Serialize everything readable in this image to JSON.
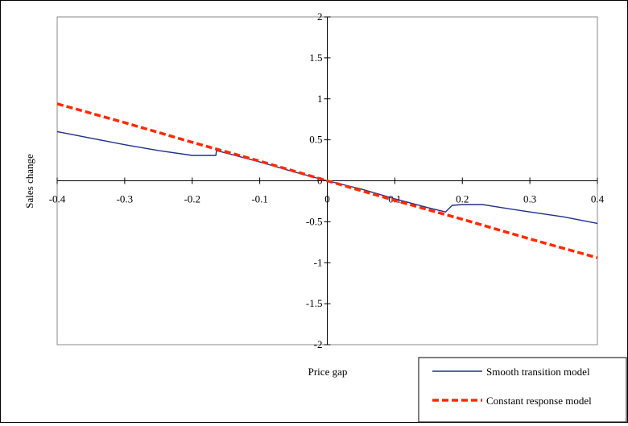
{
  "chart_data": {
    "type": "line",
    "title": "",
    "xlabel": "Price gap",
    "ylabel": "Sales change",
    "xlim": [
      -0.4,
      0.4
    ],
    "ylim": [
      -2,
      2
    ],
    "x_ticks": [
      "-0.4",
      "-0.3",
      "-0.2",
      "-0.1",
      "0",
      "0.1",
      "0.2",
      "0.3",
      "0.4"
    ],
    "y_ticks": [
      "2",
      "1.5",
      "1",
      "0.5",
      "0",
      "-0.5",
      "-1",
      "-1.5",
      "-2"
    ],
    "x_tick_values": [
      -0.4,
      -0.3,
      -0.2,
      -0.1,
      0,
      0.1,
      0.2,
      0.3,
      0.4
    ],
    "y_tick_values": [
      2,
      1.5,
      1,
      0.5,
      0,
      -0.5,
      -1,
      -1.5,
      -2
    ],
    "grid": false,
    "legend_position": "bottom-right",
    "series": [
      {
        "name": "Smooth transition model",
        "color": "#1f2f8f",
        "style": "solid",
        "x": [
          -0.4,
          -0.35,
          -0.3,
          -0.25,
          -0.2,
          -0.165,
          -0.164,
          -0.1,
          -0.05,
          0,
          0.05,
          0.1,
          0.15,
          0.175,
          0.185,
          0.2,
          0.23,
          0.26,
          0.3,
          0.35,
          0.4
        ],
        "y": [
          0.6,
          0.52,
          0.44,
          0.37,
          0.31,
          0.31,
          0.37,
          0.23,
          0.11,
          0,
          -0.1,
          -0.22,
          -0.33,
          -0.38,
          -0.3,
          -0.29,
          -0.29,
          -0.33,
          -0.38,
          -0.44,
          -0.52
        ]
      },
      {
        "name": "Constant response model",
        "color": "#ff2a00",
        "style": "dashed",
        "x": [
          -0.4,
          -0.3,
          -0.2,
          -0.1,
          0,
          0.1,
          0.2,
          0.3,
          0.4
        ],
        "y": [
          0.94,
          0.71,
          0.47,
          0.24,
          0,
          -0.24,
          -0.47,
          -0.71,
          -0.94
        ]
      }
    ]
  }
}
